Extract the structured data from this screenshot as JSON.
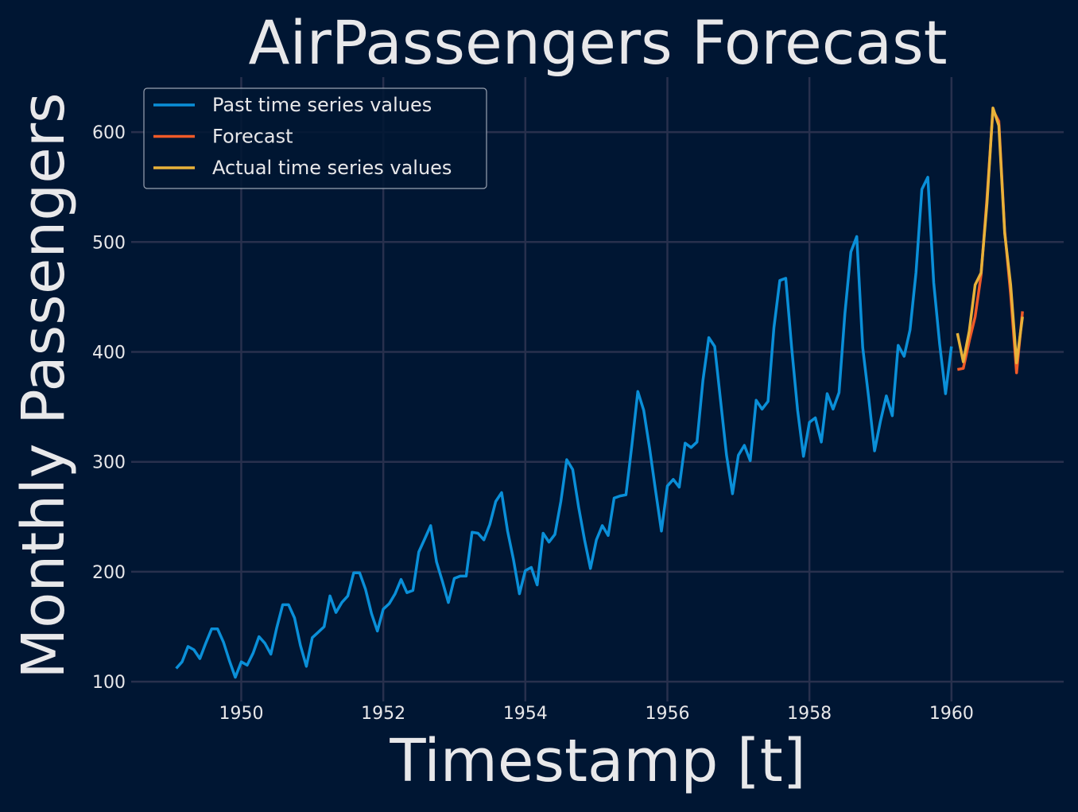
{
  "chart_data": {
    "type": "line",
    "title": "AirPassengers Forecast",
    "xlabel": "Timestamp [t]",
    "ylabel": "Monthly Passengers",
    "xlim": [
      1948.45,
      1961.58
    ],
    "ylim": [
      82,
      650
    ],
    "x_ticks": [
      1950,
      1952,
      1954,
      1956,
      1958,
      1960
    ],
    "x_tick_labels": [
      "1950",
      "1952",
      "1954",
      "1956",
      "1958",
      "1960"
    ],
    "y_ticks": [
      100,
      200,
      300,
      400,
      500,
      600
    ],
    "y_tick_labels": [
      "100",
      "200",
      "300",
      "400",
      "500",
      "600"
    ],
    "grid": true,
    "legend_position": "top-left",
    "series": [
      {
        "name": "Past time series values",
        "color": "#0a8fd8",
        "start": 1949.0833,
        "step": 0.083333,
        "values": [
          112,
          118,
          132,
          129,
          121,
          135,
          148,
          148,
          136,
          119,
          104,
          118,
          115,
          126,
          141,
          135,
          125,
          149,
          170,
          170,
          158,
          133,
          114,
          140,
          145,
          150,
          178,
          163,
          172,
          178,
          199,
          199,
          184,
          162,
          146,
          166,
          171,
          180,
          193,
          181,
          183,
          218,
          230,
          242,
          209,
          191,
          172,
          194,
          196,
          196,
          236,
          235,
          229,
          243,
          264,
          272,
          237,
          211,
          180,
          201,
          204,
          188,
          235,
          227,
          234,
          264,
          302,
          293,
          259,
          229,
          203,
          229,
          242,
          233,
          267,
          269,
          270,
          315,
          364,
          347,
          312,
          274,
          237,
          278,
          284,
          277,
          317,
          313,
          318,
          374,
          413,
          405,
          355,
          306,
          271,
          306,
          315,
          301,
          356,
          348,
          355,
          422,
          465,
          467,
          404,
          347,
          305,
          336,
          340,
          318,
          362,
          348,
          363,
          435,
          491,
          505,
          404,
          359,
          310,
          337,
          360,
          342,
          406,
          396,
          420,
          472,
          548,
          559,
          463,
          407,
          362,
          405
        ]
      },
      {
        "name": "Forecast",
        "color": "#f05a28",
        "start": 1960.0833,
        "step": 0.083333,
        "values": [
          384,
          385,
          410,
          432,
          470,
          540,
          620,
          610,
          510,
          452,
          381,
          437
        ]
      },
      {
        "name": "Actual time series values",
        "color": "#e8b23a",
        "start": 1960.0833,
        "step": 0.083333,
        "values": [
          417,
          391,
          419,
          461,
          472,
          535,
          622,
          606,
          508,
          461,
          390,
          432
        ]
      }
    ]
  }
}
